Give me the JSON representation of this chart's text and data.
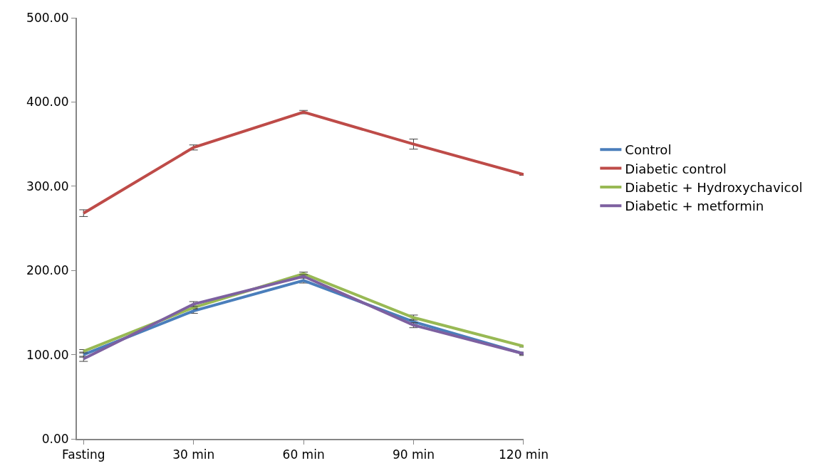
{
  "chart_data": {
    "type": "line",
    "categories": [
      "Fasting",
      "30 min",
      "60 min",
      "90 min",
      "120 min"
    ],
    "series": [
      {
        "name": "Control",
        "color": "#4a7ebb",
        "values": [
          100,
          152,
          188,
          139,
          101
        ],
        "errors": [
          3,
          3,
          3,
          3,
          2
        ]
      },
      {
        "name": "Diabetic control",
        "color": "#be4b48",
        "values": [
          268,
          346,
          388,
          350,
          314
        ],
        "errors": [
          4,
          3,
          2,
          6,
          1
        ]
      },
      {
        "name": "Diabetic + Hydroxychavicol",
        "color": "#98b954",
        "values": [
          104,
          156,
          196,
          144,
          110
        ],
        "errors": [
          2,
          2,
          2,
          3,
          1
        ]
      },
      {
        "name": "Diabetic + metformin",
        "color": "#7d60a0",
        "values": [
          95,
          160,
          193,
          135,
          101
        ],
        "errors": [
          3,
          3,
          2,
          3,
          1
        ]
      }
    ],
    "ylim": [
      0,
      500
    ],
    "yticks": [
      {
        "value": 0,
        "label": "0.00"
      },
      {
        "value": 100,
        "label": "100.00"
      },
      {
        "value": 200,
        "label": "200.00"
      },
      {
        "value": 300,
        "label": "300.00"
      },
      {
        "value": 400,
        "label": "400.00"
      },
      {
        "value": 500,
        "label": "500.00"
      }
    ],
    "grid": false,
    "legend": "right",
    "marker": "none",
    "line_style": "solid"
  }
}
